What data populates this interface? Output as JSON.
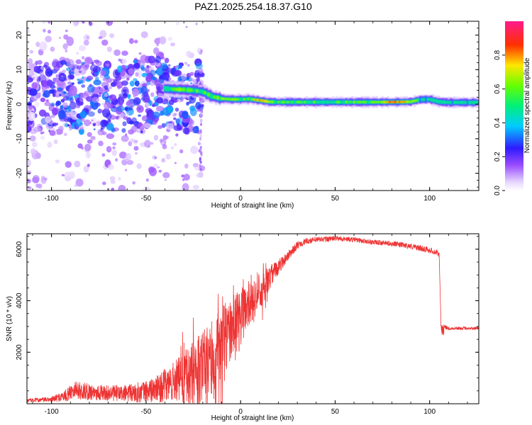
{
  "title": "PAZ1.2025.254.18.37.G10",
  "chart_data": [
    {
      "type": "heatmap",
      "xlabel": "Height of straight line (km)",
      "ylabel": "Frequency (Hz)",
      "xlim": [
        -113,
        126
      ],
      "ylim": [
        -25,
        24
      ],
      "xticks": [
        -100,
        -50,
        0,
        50,
        100
      ],
      "xtick_labels": [
        "-100",
        "-50",
        "0",
        "50",
        "100"
      ],
      "yticks": [
        -20,
        -10,
        0,
        10,
        20
      ],
      "ytick_labels": [
        "-20",
        "-10",
        "0",
        "10",
        "20"
      ],
      "colorbar": {
        "label": "Normalized spectral amplitude",
        "range": [
          0,
          1
        ],
        "ticks": [
          0.0,
          0.2,
          0.4,
          0.6,
          0.8
        ],
        "tick_labels": [
          "0.0",
          "0.2",
          "0.4",
          "0.6",
          "0.8"
        ]
      },
      "ridge": {
        "x": [
          -40,
          -35,
          -30,
          -25,
          -20,
          -15,
          -10,
          -5,
          0,
          5,
          10,
          15,
          20,
          30,
          40,
          50,
          60,
          70,
          80,
          90,
          95,
          100,
          105,
          110,
          115,
          120,
          125
        ],
        "freq": [
          4.5,
          4.3,
          4.2,
          4.0,
          3.6,
          2.2,
          1.6,
          1.4,
          1.4,
          1.5,
          1.1,
          0.7,
          0.6,
          0.6,
          0.6,
          0.6,
          0.6,
          0.6,
          0.6,
          0.7,
          1.3,
          1.4,
          0.7,
          0.5,
          0.5,
          0.5,
          0.5
        ],
        "amplitude": [
          0.45,
          0.55,
          0.6,
          0.55,
          0.5,
          0.55,
          0.6,
          0.6,
          0.55,
          0.55,
          0.7,
          0.65,
          0.55,
          0.55,
          0.5,
          0.5,
          0.55,
          0.55,
          0.75,
          0.65,
          0.45,
          0.4,
          0.55,
          0.45,
          0.45,
          0.45,
          0.5
        ]
      },
      "scatter_region": {
        "x_range": [
          -113,
          -20
        ],
        "freq_range": [
          -25,
          24
        ],
        "dense_freq_range": [
          -8,
          13
        ]
      }
    },
    {
      "type": "line",
      "color": "#ee3333",
      "xlabel": "Height of straight line (km)",
      "ylabel": "SNR (10 * v/v)",
      "xlim": [
        -113,
        126
      ],
      "ylim": [
        0,
        6600
      ],
      "xticks": [
        -100,
        -50,
        0,
        50,
        100
      ],
      "xtick_labels": [
        "-100",
        "-50",
        "0",
        "50",
        "100"
      ],
      "yticks": [
        2000,
        4000,
        6000
      ],
      "ytick_labels": [
        "2000",
        "4000",
        "6000"
      ],
      "envelope_x": [
        -113,
        -100,
        -92,
        -88,
        -85,
        -70,
        -60,
        -50,
        -45,
        -40,
        -35,
        -30,
        -25,
        -20,
        -15,
        -10,
        -5,
        0,
        5,
        10,
        15,
        20,
        25,
        30,
        35,
        40,
        50,
        60,
        70,
        80,
        90,
        100,
        104,
        105,
        106,
        108,
        110,
        120,
        126
      ],
      "envelope_snr": [
        150,
        200,
        400,
        700,
        600,
        500,
        500,
        600,
        700,
        900,
        1100,
        1300,
        1500,
        1800,
        2200,
        2800,
        3300,
        3700,
        4200,
        4600,
        5000,
        5400,
        5800,
        6200,
        6350,
        6400,
        6450,
        6400,
        6300,
        6250,
        6150,
        6000,
        5900,
        5850,
        3100,
        3000,
        2950,
        2950,
        2950
      ],
      "noise_amp": [
        80,
        100,
        250,
        350,
        350,
        300,
        350,
        450,
        500,
        650,
        800,
        1000,
        1300,
        1500,
        1500,
        1400,
        1300,
        1200,
        1000,
        800,
        500,
        300,
        200,
        150,
        120,
        120,
        100,
        100,
        100,
        100,
        110,
        120,
        120,
        120,
        120,
        80,
        70,
        60,
        60
      ]
    }
  ]
}
